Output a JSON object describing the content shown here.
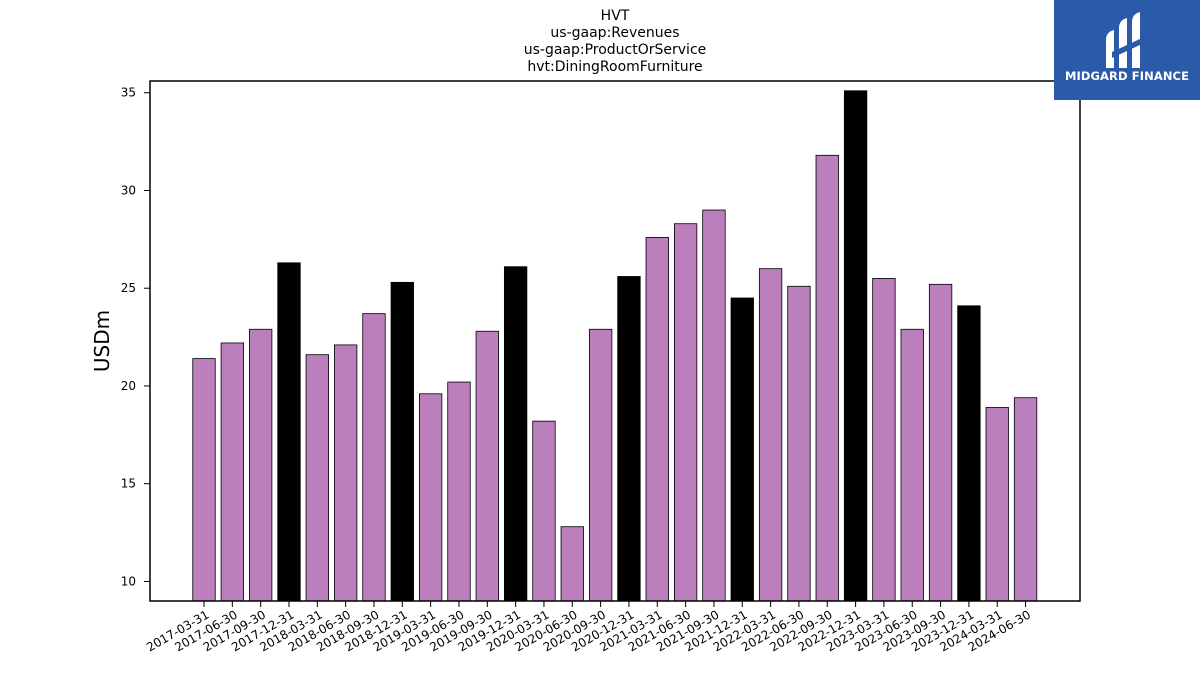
{
  "chart_data": {
    "type": "bar",
    "title_lines": [
      "HVT",
      "us-gaap:Revenues",
      "us-gaap:ProductOrService",
      "hvt:DiningRoomFurniture"
    ],
    "xlabel": "",
    "ylabel": "USDm",
    "ylim": [
      9.0,
      35.6
    ],
    "yticks": [
      10,
      15,
      20,
      25,
      30,
      35
    ],
    "grid": false,
    "categories": [
      "2017-03-31",
      "2017-06-30",
      "2017-09-30",
      "2017-12-31",
      "2018-03-31",
      "2018-06-30",
      "2018-09-30",
      "2018-12-31",
      "2019-03-31",
      "2019-06-30",
      "2019-09-30",
      "2019-12-31",
      "2020-03-31",
      "2020-06-30",
      "2020-09-30",
      "2020-12-31",
      "2021-03-31",
      "2021-06-30",
      "2021-09-30",
      "2021-12-31",
      "2022-03-31",
      "2022-06-30",
      "2022-09-30",
      "2022-12-31",
      "2023-03-31",
      "2023-06-30",
      "2023-09-30",
      "2023-12-31",
      "2024-03-31",
      "2024-06-30"
    ],
    "values": [
      21.4,
      22.2,
      22.9,
      26.3,
      21.6,
      22.1,
      23.7,
      25.3,
      19.6,
      20.2,
      22.8,
      26.1,
      18.2,
      12.8,
      22.9,
      25.6,
      27.6,
      28.3,
      29.0,
      24.5,
      26.0,
      25.1,
      31.8,
      35.1,
      25.5,
      22.9,
      25.2,
      24.1,
      18.9,
      19.4
    ],
    "colors": {
      "quarter": "#bb7fbd",
      "fiscal_year_end": "#000000",
      "edge": "#000000"
    },
    "highlighted_categories": [
      "2017-12-31",
      "2018-12-31",
      "2019-12-31",
      "2020-12-31",
      "2021-12-31",
      "2022-12-31",
      "2023-12-31"
    ]
  },
  "logo": {
    "text": "MIDGARD FINANCE",
    "color": "#2b5aa8"
  }
}
